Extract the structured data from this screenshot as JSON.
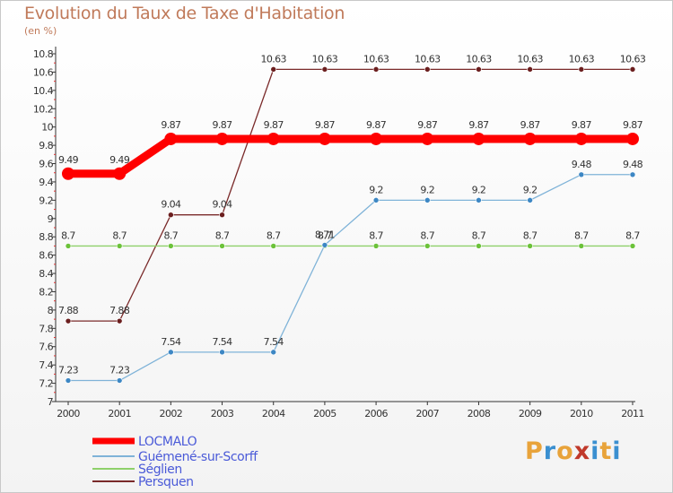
{
  "title": "Evolution du Taux de Taxe d'Habitation",
  "subtitle": "(en %)",
  "logo_letters": [
    "P",
    "r",
    "o",
    "x",
    "i",
    "t",
    "i"
  ],
  "logo_colors": [
    "#e8a33a",
    "#3a8fd0",
    "#e8a33a",
    "#c0392b",
    "#3a8fd0",
    "#e8a33a",
    "#3a8fd0"
  ],
  "chart_data": {
    "type": "line",
    "x": [
      "2000",
      "2001",
      "2002",
      "2003",
      "2004",
      "2005",
      "2006",
      "2007",
      "2008",
      "2009",
      "2010",
      "2011"
    ],
    "ylim": [
      7,
      10.8
    ],
    "yticks": [
      "7",
      "7.2",
      "7.4",
      "7.6",
      "7.8",
      "8",
      "8.2",
      "8.4",
      "8.6",
      "8.8",
      "9",
      "9.2",
      "9.4",
      "9.6",
      "9.8",
      "10",
      "10.2",
      "10.4",
      "10.6",
      "10.8"
    ],
    "grid": false,
    "legend_position": "bottom-left",
    "series": [
      {
        "name": "LOCMALO",
        "color": "#ff0000",
        "dot": "#ff0000",
        "width": 9,
        "values": [
          9.49,
          9.49,
          9.87,
          9.87,
          9.87,
          9.87,
          9.87,
          9.87,
          9.87,
          9.87,
          9.87,
          9.87
        ],
        "labels": [
          "9.49",
          "9.49",
          "9.87",
          "9.87",
          "9.87",
          "9.87",
          "9.87",
          "9.87",
          "9.87",
          "9.87",
          "9.87",
          "9.87"
        ]
      },
      {
        "name": "Guémené-sur-Scorff",
        "color": "#7fb3d8",
        "dot": "#3d87c4",
        "width": 1.3,
        "values": [
          7.23,
          7.23,
          7.54,
          7.54,
          7.54,
          8.71,
          9.2,
          9.2,
          9.2,
          9.2,
          9.48,
          9.48
        ],
        "labels": [
          "7.23",
          "7.23",
          "7.54",
          "7.54",
          "7.54",
          "8.71",
          "9.2",
          "9.2",
          "9.2",
          "9.2",
          "9.48",
          "9.48"
        ]
      },
      {
        "name": "Séglien",
        "color": "#8ed06a",
        "dot": "#6cc23a",
        "width": 1.3,
        "values": [
          8.7,
          8.7,
          8.7,
          8.7,
          8.7,
          8.7,
          8.7,
          8.7,
          8.7,
          8.7,
          8.7,
          8.7
        ],
        "labels": [
          "8.7",
          "8.7",
          "8.7",
          "8.7",
          "8.7",
          "8.7",
          "8.7",
          "8.7",
          "8.7",
          "8.7",
          "8.7",
          "8.7"
        ]
      },
      {
        "name": "Persquen",
        "color": "#7a2a2a",
        "dot": "#6b1e1e",
        "width": 1.3,
        "values": [
          7.88,
          7.88,
          9.04,
          9.04,
          10.63,
          10.63,
          10.63,
          10.63,
          10.63,
          10.63,
          10.63,
          10.63
        ],
        "labels": [
          "7.88",
          "7.88",
          "9.04",
          "9.04",
          "10.63",
          "10.63",
          "10.63",
          "10.63",
          "10.63",
          "10.63",
          "10.63",
          "10.63"
        ]
      }
    ]
  }
}
